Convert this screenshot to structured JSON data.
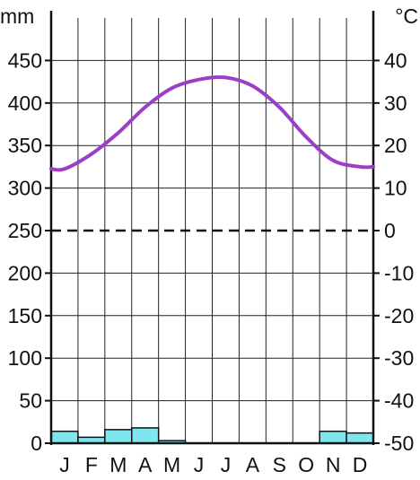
{
  "chart_data": {
    "type": "bar",
    "left_unit": "mm",
    "right_unit": "°C",
    "categories": [
      "J",
      "F",
      "M",
      "A",
      "M",
      "J",
      "J",
      "A",
      "S",
      "O",
      "N",
      "D"
    ],
    "precipitation_mm": [
      14,
      7,
      16,
      18,
      3,
      0,
      0,
      0,
      0,
      0,
      14,
      12
    ],
    "temperature_c": [
      14.5,
      18,
      23,
      29,
      33.5,
      35.5,
      36,
      34,
      29,
      22,
      16.5,
      15
    ],
    "left_axis": {
      "min": 0,
      "max": 500,
      "ticks": [
        "0",
        "50",
        "100",
        "150",
        "200",
        "250",
        "300",
        "350",
        "400",
        "450"
      ]
    },
    "right_axis": {
      "min": -50,
      "max": 50,
      "ticks": [
        "-50",
        "-40",
        "-30",
        "-20",
        "-10",
        "0",
        "10",
        "20",
        "30",
        "40"
      ]
    },
    "zero_line_temperature": 0,
    "grid": true,
    "colors": {
      "bars": "#7fe6f0",
      "bar_stroke": "#111111",
      "line": "#9b3fc9",
      "grid": "#222222"
    }
  }
}
